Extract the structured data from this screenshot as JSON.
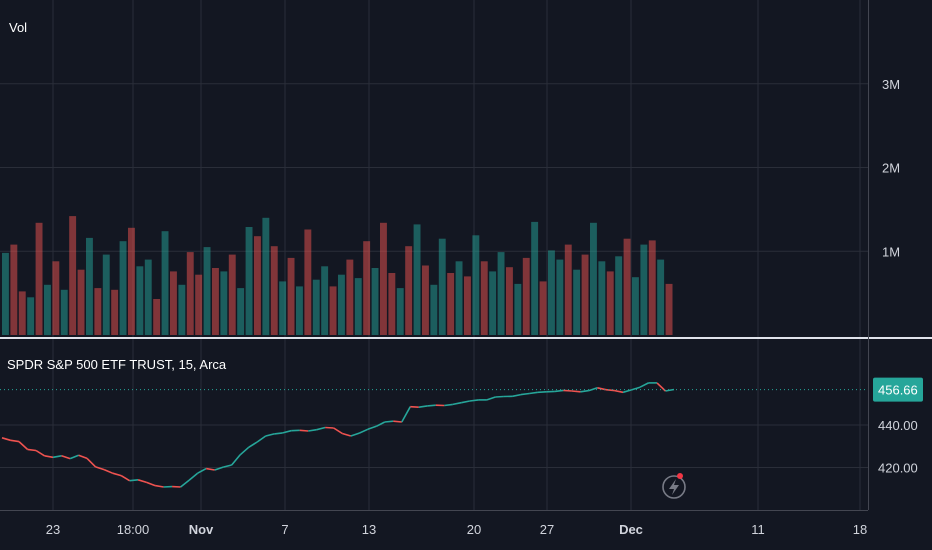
{
  "chart_data": [
    {
      "type": "bar",
      "title": "Vol",
      "ylim": [
        0,
        4000000
      ],
      "y_ticks": [
        {
          "value": 1000000,
          "label": "1M"
        },
        {
          "value": 2000000,
          "label": "2M"
        },
        {
          "value": 3000000,
          "label": "3M"
        }
      ],
      "colors": {
        "up": "#26a69a",
        "down": "#ef5350"
      },
      "series": [
        {
          "values": [
            980000,
            1080000,
            520000,
            450000,
            1340000,
            600000,
            880000,
            540000,
            1420000,
            780000,
            1160000,
            560000,
            960000,
            540000,
            1120000,
            1280000,
            820000,
            900000,
            430000,
            1240000,
            760000,
            600000,
            990000,
            720000,
            1050000,
            800000,
            760000,
            960000,
            560000,
            1290000,
            1180000,
            1400000,
            1060000,
            640000,
            920000,
            580000,
            1260000,
            660000,
            820000,
            580000,
            720000,
            900000,
            680000,
            1120000,
            800000,
            1340000,
            740000,
            560000,
            1060000,
            1320000,
            830000,
            600000,
            1150000,
            740000,
            880000,
            700000,
            1190000,
            880000,
            760000,
            990000,
            810000,
            610000,
            920000,
            1350000,
            640000,
            1010000,
            900000,
            1080000,
            780000,
            960000,
            1340000,
            880000,
            760000,
            940000,
            1150000,
            690000,
            1080000,
            1130000,
            900000,
            610000
          ]
        },
        {
          "directions": [
            "up",
            "down",
            "down",
            "up",
            "down",
            "up",
            "down",
            "up",
            "down",
            "down",
            "up",
            "down",
            "up",
            "down",
            "up",
            "down",
            "up",
            "up",
            "down",
            "up",
            "down",
            "up",
            "down",
            "down",
            "up",
            "down",
            "up",
            "down",
            "up",
            "up",
            "down",
            "up",
            "down",
            "up",
            "down",
            "up",
            "down",
            "up",
            "up",
            "down",
            "up",
            "down",
            "up",
            "down",
            "up",
            "down",
            "down",
            "up",
            "down",
            "up",
            "down",
            "up",
            "up",
            "down",
            "up",
            "down",
            "up",
            "down",
            "up",
            "up",
            "down",
            "up",
            "down",
            "up",
            "down",
            "up",
            "up",
            "down",
            "up",
            "down",
            "up",
            "up",
            "down",
            "up",
            "down",
            "up",
            "up",
            "down",
            "up",
            "down"
          ]
        }
      ]
    },
    {
      "type": "line",
      "title": "SPDR S&P 500 ETF TRUST, 15, Arca",
      "ylim": [
        400,
        480
      ],
      "y_ticks": [
        {
          "value": 420,
          "label": "420.00"
        },
        {
          "value": 440,
          "label": "440.00"
        }
      ],
      "last_price": 456.66,
      "last_price_label": "456.66",
      "x_ticks": [
        {
          "label": "23",
          "bold": false
        },
        {
          "label": "18:00",
          "bold": false
        },
        {
          "label": "Nov",
          "bold": true
        },
        {
          "label": "7",
          "bold": false
        },
        {
          "label": "13",
          "bold": false
        },
        {
          "label": "20",
          "bold": false
        },
        {
          "label": "27",
          "bold": false
        },
        {
          "label": "Dec",
          "bold": true
        },
        {
          "label": "11",
          "bold": false
        },
        {
          "label": "18",
          "bold": false
        }
      ],
      "series": [
        {
          "values": [
            434.0,
            432.8,
            432.2,
            428.5,
            428.0,
            425.5,
            424.8,
            425.5,
            424.2,
            425.8,
            424.3,
            420.3,
            419.0,
            417.3,
            416.2,
            413.8,
            414.2,
            413.0,
            411.5,
            410.8,
            411.0,
            410.8,
            414.0,
            417.3,
            419.5,
            418.8,
            420.2,
            421.2,
            426.0,
            429.5,
            432.0,
            434.8,
            435.8,
            436.3,
            437.3,
            437.5,
            437.2,
            437.8,
            438.8,
            438.6,
            436.0,
            434.8,
            436.2,
            438.0,
            439.4,
            441.4,
            441.8,
            441.4,
            448.6,
            448.4,
            449.0,
            449.3,
            449.2,
            449.7,
            450.5,
            451.3,
            451.8,
            451.8,
            453.2,
            453.4,
            453.5,
            454.3,
            454.8,
            455.4,
            455.6,
            455.8,
            456.3,
            456.0,
            455.6,
            456.2,
            457.5,
            456.6,
            456.2,
            455.4,
            456.5,
            457.8,
            459.8,
            459.8,
            456.0,
            456.7
          ]
        }
      ]
    }
  ]
}
